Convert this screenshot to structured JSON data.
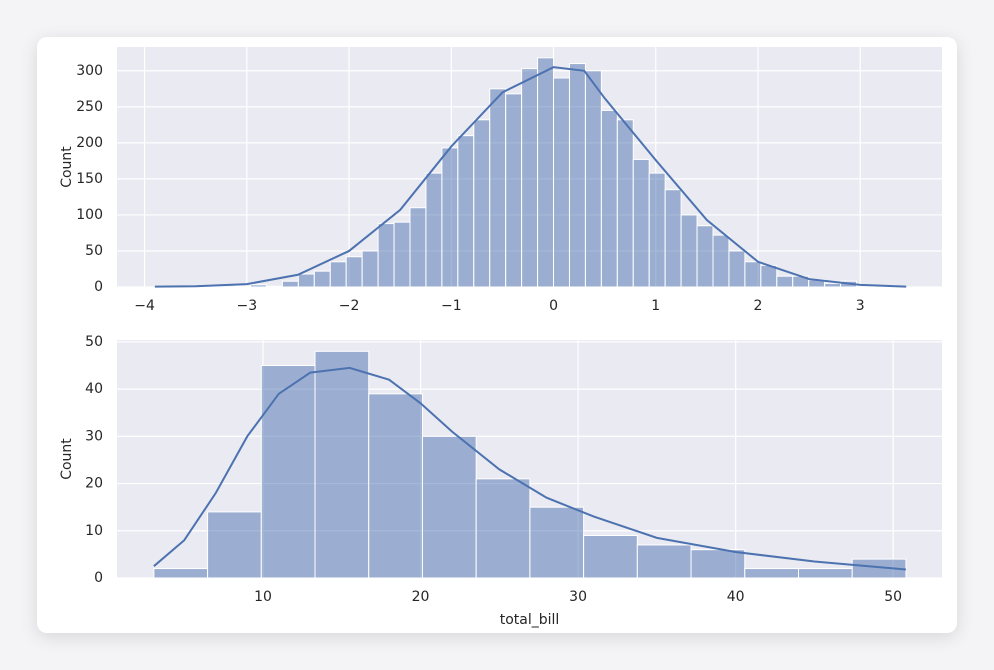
{
  "chart_data": [
    {
      "type": "histogram",
      "ylabel": "Count",
      "color": "#4c72b0",
      "grid": true,
      "bins": [
        -3.9,
        -3.744,
        -3.588,
        -3.432,
        -3.276,
        -3.12,
        -2.964,
        -2.808,
        -2.652,
        -2.496,
        -2.34,
        -2.184,
        -2.028,
        -1.872,
        -1.716,
        -1.56,
        -1.404,
        -1.248,
        -1.092,
        -0.936,
        -0.78,
        -0.624,
        -0.468,
        -0.312,
        -0.156,
        0,
        0.156,
        0.312,
        0.468,
        0.624,
        0.78,
        0.936,
        1.092,
        1.248,
        1.404,
        1.56,
        1.716,
        1.872,
        2.028,
        2.184,
        2.34,
        2.496,
        2.652,
        2.808,
        2.964,
        3.12,
        3.276,
        3.432
      ],
      "counts": [
        1,
        0,
        0,
        0,
        0,
        1,
        3,
        1,
        8,
        18,
        22,
        35,
        42,
        50,
        88,
        90,
        110,
        158,
        193,
        210,
        232,
        275,
        268,
        303,
        318,
        290,
        310,
        300,
        245,
        232,
        177,
        158,
        135,
        100,
        85,
        72,
        50,
        35,
        30,
        15,
        15,
        10,
        5,
        8,
        0,
        1,
        1
      ],
      "kde": {
        "x": [
          -3.9,
          -3.5,
          -3,
          -2.5,
          -2,
          -1.5,
          -1,
          -0.5,
          0,
          0.3,
          0.5,
          1,
          1.5,
          2,
          2.5,
          3,
          3.45
        ],
        "values": [
          0.5,
          1,
          4,
          17,
          50,
          107,
          195,
          270,
          305,
          300,
          262,
          176,
          93,
          35,
          11,
          3,
          0.5
        ]
      },
      "xlim": [
        -4.27,
        3.8
      ],
      "ylim": [
        0,
        333
      ],
      "xticks": [
        {
          "value": -4,
          "label": "−4"
        },
        {
          "value": -3,
          "label": "−3"
        },
        {
          "value": -2,
          "label": "−2"
        },
        {
          "value": -1,
          "label": "−1"
        },
        0,
        1,
        2,
        3
      ],
      "yticks": [
        0,
        50,
        100,
        150,
        200,
        250,
        300
      ]
    },
    {
      "type": "histogram",
      "xlabel": "total_bill",
      "ylabel": "Count",
      "color": "#4c72b0",
      "grid": true,
      "bins": [
        3.07,
        6.48,
        9.89,
        13.3,
        16.71,
        20.12,
        23.53,
        26.94,
        30.35,
        33.76,
        37.17,
        40.58,
        43.99,
        47.4,
        50.81
      ],
      "counts": [
        2,
        14,
        45,
        48,
        39,
        30,
        21,
        15,
        9,
        7,
        6,
        2,
        2,
        4
      ],
      "kde": {
        "x": [
          3.07,
          5,
          7,
          9,
          11,
          13,
          15.5,
          18,
          20,
          22,
          25,
          28,
          31,
          35,
          40,
          45,
          50.81
        ],
        "values": [
          2.5,
          8,
          18,
          30,
          39,
          43.5,
          44.5,
          42,
          37,
          31,
          23,
          17,
          13,
          8.5,
          5.5,
          3.5,
          1.8
        ]
      },
      "xlim": [
        0.73,
        53.1
      ],
      "ylim": [
        0,
        50.4
      ],
      "xticks": [
        10,
        20,
        30,
        40,
        50
      ],
      "yticks": [
        0,
        10,
        20,
        30,
        40,
        50
      ]
    }
  ]
}
